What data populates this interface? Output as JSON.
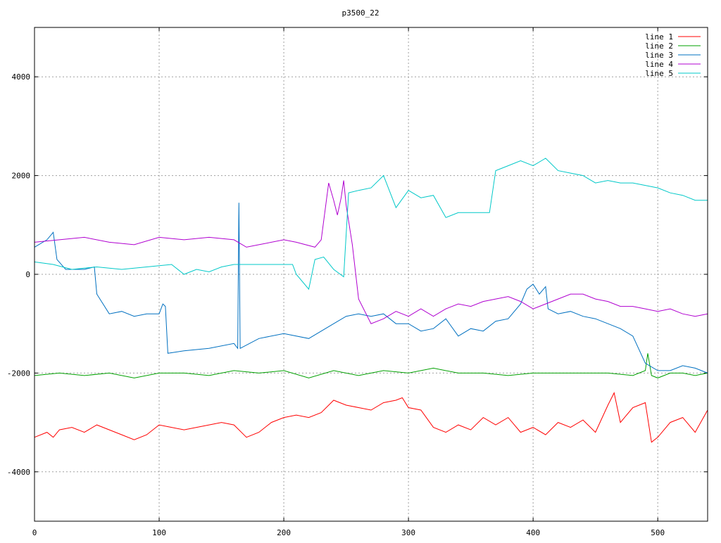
{
  "chart_data": {
    "type": "line",
    "title": "p3500_22",
    "xlim": [
      0,
      540
    ],
    "ylim": [
      -5000,
      5000
    ],
    "x_ticks": [
      0,
      100,
      200,
      300,
      400,
      500
    ],
    "y_ticks": [
      -4000,
      -2000,
      0,
      2000,
      4000
    ],
    "y_tick_labels": [
      "-4000",
      "-2000",
      "0",
      "2000",
      "4000"
    ],
    "grid": true,
    "legend_position": "top-right",
    "series": [
      {
        "name": "line 1",
        "color": "#ff0000",
        "points": [
          [
            0,
            -3300
          ],
          [
            10,
            -3200
          ],
          [
            15,
            -3300
          ],
          [
            20,
            -3150
          ],
          [
            30,
            -3100
          ],
          [
            40,
            -3200
          ],
          [
            50,
            -3050
          ],
          [
            60,
            -3150
          ],
          [
            70,
            -3250
          ],
          [
            80,
            -3350
          ],
          [
            90,
            -3250
          ],
          [
            100,
            -3050
          ],
          [
            110,
            -3100
          ],
          [
            120,
            -3150
          ],
          [
            130,
            -3100
          ],
          [
            140,
            -3050
          ],
          [
            150,
            -3000
          ],
          [
            160,
            -3050
          ],
          [
            170,
            -3300
          ],
          [
            180,
            -3200
          ],
          [
            190,
            -3000
          ],
          [
            200,
            -2900
          ],
          [
            210,
            -2850
          ],
          [
            220,
            -2900
          ],
          [
            230,
            -2800
          ],
          [
            240,
            -2550
          ],
          [
            250,
            -2650
          ],
          [
            260,
            -2700
          ],
          [
            270,
            -2750
          ],
          [
            280,
            -2600
          ],
          [
            290,
            -2550
          ],
          [
            295,
            -2500
          ],
          [
            300,
            -2700
          ],
          [
            310,
            -2750
          ],
          [
            320,
            -3100
          ],
          [
            330,
            -3200
          ],
          [
            340,
            -3050
          ],
          [
            350,
            -3150
          ],
          [
            360,
            -2900
          ],
          [
            370,
            -3050
          ],
          [
            380,
            -2900
          ],
          [
            390,
            -3200
          ],
          [
            400,
            -3100
          ],
          [
            410,
            -3250
          ],
          [
            420,
            -3000
          ],
          [
            430,
            -3100
          ],
          [
            440,
            -2950
          ],
          [
            450,
            -3200
          ],
          [
            460,
            -2650
          ],
          [
            465,
            -2400
          ],
          [
            470,
            -3000
          ],
          [
            480,
            -2700
          ],
          [
            490,
            -2600
          ],
          [
            495,
            -3400
          ],
          [
            500,
            -3300
          ],
          [
            510,
            -3000
          ],
          [
            520,
            -2900
          ],
          [
            530,
            -3200
          ],
          [
            540,
            -2750
          ]
        ]
      },
      {
        "name": "line 2",
        "color": "#00a000",
        "points": [
          [
            0,
            -2050
          ],
          [
            20,
            -2000
          ],
          [
            40,
            -2050
          ],
          [
            60,
            -2000
          ],
          [
            80,
            -2100
          ],
          [
            100,
            -2000
          ],
          [
            120,
            -2000
          ],
          [
            140,
            -2050
          ],
          [
            160,
            -1950
          ],
          [
            180,
            -2000
          ],
          [
            200,
            -1950
          ],
          [
            220,
            -2100
          ],
          [
            240,
            -1950
          ],
          [
            260,
            -2050
          ],
          [
            280,
            -1950
          ],
          [
            300,
            -2000
          ],
          [
            320,
            -1900
          ],
          [
            340,
            -2000
          ],
          [
            360,
            -2000
          ],
          [
            380,
            -2050
          ],
          [
            400,
            -2000
          ],
          [
            420,
            -2000
          ],
          [
            440,
            -2000
          ],
          [
            460,
            -2000
          ],
          [
            480,
            -2050
          ],
          [
            490,
            -1950
          ],
          [
            492,
            -1600
          ],
          [
            495,
            -2050
          ],
          [
            500,
            -2100
          ],
          [
            510,
            -2000
          ],
          [
            520,
            -2000
          ],
          [
            530,
            -2050
          ],
          [
            540,
            -2000
          ]
        ]
      },
      {
        "name": "line 3",
        "color": "#0070c0",
        "points": [
          [
            0,
            550
          ],
          [
            10,
            700
          ],
          [
            15,
            850
          ],
          [
            18,
            300
          ],
          [
            25,
            100
          ],
          [
            40,
            100
          ],
          [
            48,
            150
          ],
          [
            50,
            -400
          ],
          [
            60,
            -800
          ],
          [
            70,
            -750
          ],
          [
            80,
            -850
          ],
          [
            90,
            -800
          ],
          [
            100,
            -800
          ],
          [
            103,
            -600
          ],
          [
            105,
            -650
          ],
          [
            107,
            -1600
          ],
          [
            120,
            -1550
          ],
          [
            140,
            -1500
          ],
          [
            160,
            -1400
          ],
          [
            163,
            -1500
          ],
          [
            164,
            1450
          ],
          [
            165,
            -1500
          ],
          [
            180,
            -1300
          ],
          [
            200,
            -1200
          ],
          [
            220,
            -1300
          ],
          [
            240,
            -1000
          ],
          [
            250,
            -850
          ],
          [
            260,
            -800
          ],
          [
            270,
            -850
          ],
          [
            280,
            -800
          ],
          [
            290,
            -1000
          ],
          [
            300,
            -1000
          ],
          [
            310,
            -1150
          ],
          [
            320,
            -1100
          ],
          [
            330,
            -900
          ],
          [
            340,
            -1250
          ],
          [
            350,
            -1100
          ],
          [
            360,
            -1150
          ],
          [
            370,
            -950
          ],
          [
            380,
            -900
          ],
          [
            390,
            -600
          ],
          [
            395,
            -300
          ],
          [
            400,
            -200
          ],
          [
            405,
            -400
          ],
          [
            410,
            -250
          ],
          [
            412,
            -700
          ],
          [
            420,
            -800
          ],
          [
            430,
            -750
          ],
          [
            440,
            -850
          ],
          [
            450,
            -900
          ],
          [
            460,
            -1000
          ],
          [
            470,
            -1100
          ],
          [
            480,
            -1250
          ],
          [
            490,
            -1800
          ],
          [
            500,
            -1950
          ],
          [
            510,
            -1950
          ],
          [
            520,
            -1850
          ],
          [
            530,
            -1900
          ],
          [
            540,
            -2000
          ]
        ]
      },
      {
        "name": "line 4",
        "color": "#b000d0",
        "points": [
          [
            0,
            650
          ],
          [
            20,
            700
          ],
          [
            40,
            750
          ],
          [
            60,
            650
          ],
          [
            80,
            600
          ],
          [
            100,
            750
          ],
          [
            120,
            700
          ],
          [
            140,
            750
          ],
          [
            160,
            700
          ],
          [
            170,
            550
          ],
          [
            180,
            600
          ],
          [
            200,
            700
          ],
          [
            210,
            650
          ],
          [
            225,
            550
          ],
          [
            230,
            700
          ],
          [
            236,
            1850
          ],
          [
            240,
            1500
          ],
          [
            243,
            1200
          ],
          [
            246,
            1550
          ],
          [
            248,
            1900
          ],
          [
            250,
            1400
          ],
          [
            255,
            600
          ],
          [
            260,
            -500
          ],
          [
            270,
            -1000
          ],
          [
            280,
            -900
          ],
          [
            290,
            -750
          ],
          [
            300,
            -850
          ],
          [
            310,
            -700
          ],
          [
            320,
            -850
          ],
          [
            330,
            -700
          ],
          [
            340,
            -600
          ],
          [
            350,
            -650
          ],
          [
            360,
            -550
          ],
          [
            370,
            -500
          ],
          [
            380,
            -450
          ],
          [
            390,
            -550
          ],
          [
            400,
            -700
          ],
          [
            410,
            -600
          ],
          [
            420,
            -500
          ],
          [
            430,
            -400
          ],
          [
            440,
            -400
          ],
          [
            450,
            -500
          ],
          [
            460,
            -550
          ],
          [
            470,
            -650
          ],
          [
            480,
            -650
          ],
          [
            490,
            -700
          ],
          [
            500,
            -750
          ],
          [
            510,
            -700
          ],
          [
            520,
            -800
          ],
          [
            530,
            -850
          ],
          [
            540,
            -800
          ]
        ]
      },
      {
        "name": "line 5",
        "color": "#00c8c8",
        "points": [
          [
            0,
            250
          ],
          [
            15,
            200
          ],
          [
            30,
            100
          ],
          [
            50,
            150
          ],
          [
            70,
            100
          ],
          [
            90,
            150
          ],
          [
            110,
            200
          ],
          [
            120,
            0
          ],
          [
            130,
            100
          ],
          [
            140,
            50
          ],
          [
            150,
            150
          ],
          [
            160,
            200
          ],
          [
            170,
            200
          ],
          [
            190,
            200
          ],
          [
            200,
            200
          ],
          [
            207,
            200
          ],
          [
            210,
            0
          ],
          [
            220,
            -300
          ],
          [
            225,
            300
          ],
          [
            232,
            350
          ],
          [
            240,
            100
          ],
          [
            248,
            -50
          ],
          [
            252,
            1650
          ],
          [
            260,
            1700
          ],
          [
            270,
            1750
          ],
          [
            280,
            2000
          ],
          [
            290,
            1350
          ],
          [
            300,
            1700
          ],
          [
            310,
            1550
          ],
          [
            320,
            1600
          ],
          [
            330,
            1150
          ],
          [
            340,
            1250
          ],
          [
            350,
            1250
          ],
          [
            360,
            1250
          ],
          [
            365,
            1250
          ],
          [
            370,
            2100
          ],
          [
            380,
            2200
          ],
          [
            390,
            2300
          ],
          [
            400,
            2200
          ],
          [
            410,
            2350
          ],
          [
            420,
            2100
          ],
          [
            430,
            2050
          ],
          [
            440,
            2000
          ],
          [
            450,
            1850
          ],
          [
            460,
            1900
          ],
          [
            470,
            1850
          ],
          [
            480,
            1850
          ],
          [
            490,
            1800
          ],
          [
            500,
            1750
          ],
          [
            510,
            1650
          ],
          [
            520,
            1600
          ],
          [
            530,
            1500
          ],
          [
            540,
            1500
          ]
        ]
      }
    ]
  }
}
